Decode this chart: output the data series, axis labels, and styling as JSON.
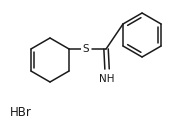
{
  "background": "#ffffff",
  "line_color": "#1a1a1a",
  "line_width": 1.1,
  "text_color": "#1a1a1a",
  "hbr_text": "HBr",
  "s_label": "S",
  "nh_label": "NH",
  "figsize": [
    1.89,
    1.29
  ],
  "dpi": 100
}
